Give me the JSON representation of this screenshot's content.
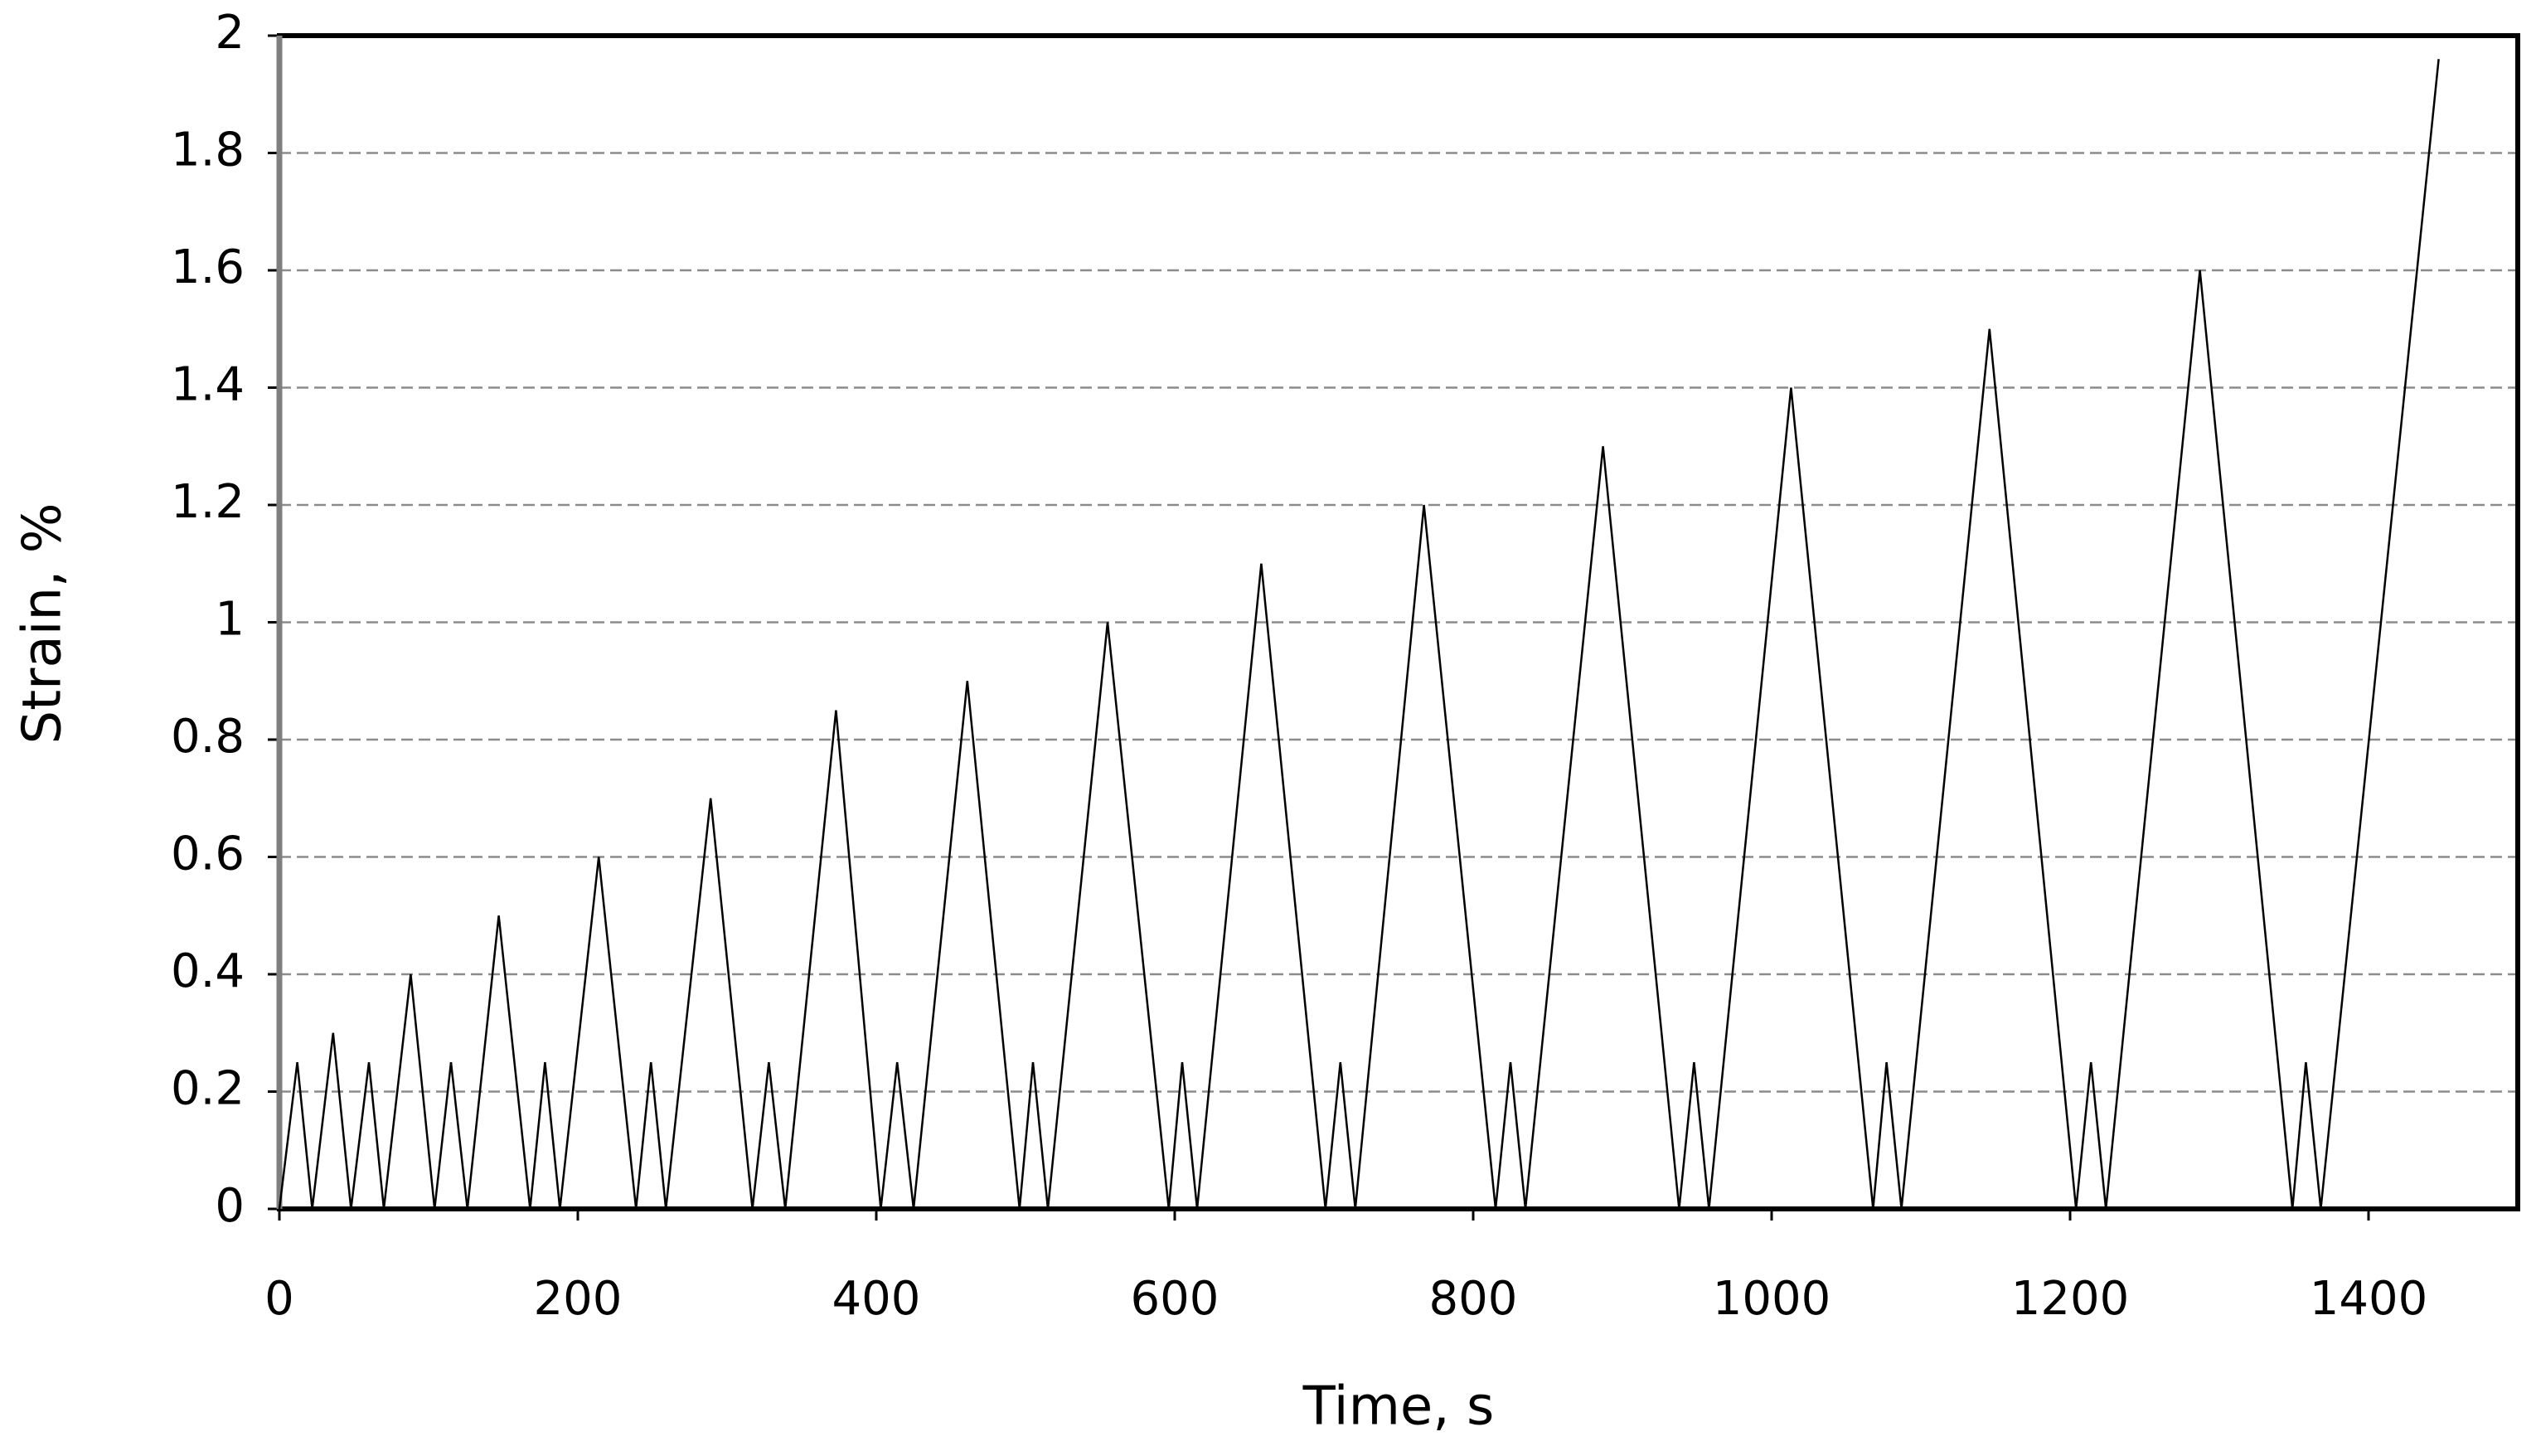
{
  "chart_data": {
    "type": "line",
    "x_label": "Time, s",
    "y_label": "Strain, %",
    "x": [
      0,
      12,
      22,
      36,
      48,
      60,
      70,
      88,
      104,
      115,
      126,
      147,
      168,
      178,
      188,
      214,
      239,
      249,
      259,
      289,
      317,
      328,
      339,
      373,
      403,
      414,
      425,
      461,
      496,
      505,
      515,
      555,
      596,
      605,
      615,
      658,
      701,
      711,
      721,
      767,
      815,
      825,
      835,
      887,
      938,
      948,
      958,
      1013,
      1068,
      1077,
      1087,
      1146,
      1204,
      1214,
      1224,
      1287,
      1349,
      1358,
      1368,
      1447
    ],
    "values": [
      0,
      0.25,
      0,
      0.3,
      0,
      0.25,
      0,
      0.4,
      0,
      0.25,
      0,
      0.5,
      0,
      0.25,
      0,
      0.6,
      0,
      0.25,
      0,
      0.7,
      0,
      0.25,
      0,
      0.85,
      0,
      0.25,
      0,
      0.9,
      0,
      0.25,
      0,
      1.0,
      0,
      0.25,
      0,
      1.1,
      0,
      0.25,
      0,
      1.2,
      0,
      0.25,
      0,
      1.3,
      0,
      0.25,
      0,
      1.4,
      0,
      0.25,
      0,
      1.5,
      0,
      0.25,
      0,
      1.6,
      0,
      0.25,
      0,
      1.96
    ],
    "color": "#000000",
    "xlim": [
      0,
      1500
    ],
    "xticks": [
      0,
      200,
      400,
      600,
      800,
      1000,
      1200,
      1400
    ],
    "ylim": [
      0,
      2
    ],
    "yticks": [
      0,
      0.2,
      0.4,
      0.6,
      0.8,
      1,
      1.2,
      1.4,
      1.6,
      1.8,
      2
    ],
    "grid": true
  }
}
